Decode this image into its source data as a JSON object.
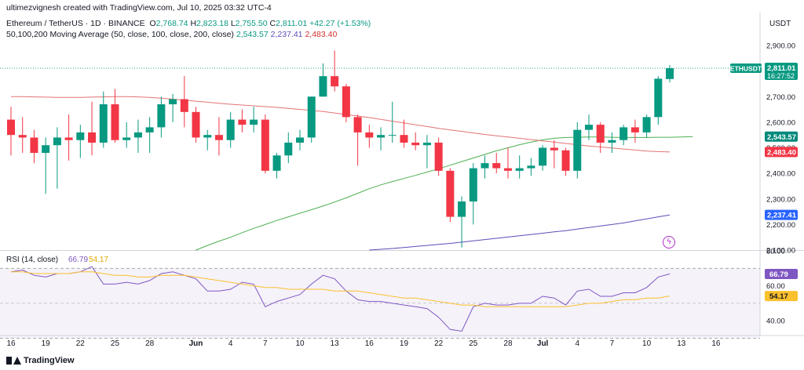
{
  "header": {
    "credit": "ultimezvignesh created with TradingView.com, Jul 10, 2025 03:32 UTC-4",
    "symbol": "Ethereum / TetherUS · 1D · BINANCE",
    "o_label": "O",
    "o_value": "2,768.74",
    "h_label": "H",
    "h_value": "2,823.18",
    "l_label": "L",
    "l_value": "2,755.50",
    "c_label": "C",
    "c_value": "2,811.01",
    "change": "+42.27 (+1.53%)",
    "ma_label": "50,100,200 Moving Average (50, close, 100, close, 200, close)",
    "ma50_value": "2,543.57",
    "ma100_value": "2,237.41",
    "ma200_value": "2,483.40"
  },
  "footer": {
    "brand": "TradingView"
  },
  "colors": {
    "up": "#089981",
    "down": "#f23645",
    "ma50": "#4caf50",
    "ma100": "#5b4fb8",
    "ma200": "#e57373",
    "rsi": "#7e57c2",
    "rsi_ma": "#fbc02d",
    "rsi_band": "#ede7f6"
  },
  "chart_data": [
    {
      "type": "candlestick",
      "title": "Ethereum / TetherUS · 1D · BINANCE",
      "currency": "USDT",
      "ylim": [
        2100,
        2950
      ],
      "y_ticks": [
        "2,900.00",
        "2,800.00",
        "2,700.00",
        "2,600.00",
        "2,500.00",
        "2,400.00",
        "2,300.00",
        "2,200.00",
        "2,100.00"
      ],
      "y_tick_values": [
        2900,
        2800,
        2700,
        2600,
        2500,
        2400,
        2300,
        2200,
        2100
      ],
      "x_ticks": [
        "16",
        "19",
        "22",
        "25",
        "28",
        "Jun",
        "4",
        "7",
        "10",
        "13",
        "16",
        "19",
        "22",
        "25",
        "28",
        "Jul",
        "4",
        "7",
        "10",
        "13",
        "16"
      ],
      "x_tick_index": [
        0,
        3,
        6,
        9,
        12,
        16,
        19,
        22,
        25,
        28,
        31,
        34,
        37,
        40,
        43,
        46,
        49,
        52,
        55,
        58,
        61
      ],
      "ohlc": [
        [
          2610,
          2660,
          2470,
          2550
        ],
        [
          2550,
          2620,
          2480,
          2540
        ],
        [
          2540,
          2570,
          2440,
          2480
        ],
        [
          2480,
          2540,
          2320,
          2510
        ],
        [
          2510,
          2580,
          2340,
          2540
        ],
        [
          2540,
          2630,
          2450,
          2530
        ],
        [
          2530,
          2590,
          2460,
          2560
        ],
        [
          2560,
          2680,
          2470,
          2520
        ],
        [
          2520,
          2720,
          2500,
          2670
        ],
        [
          2670,
          2730,
          2520,
          2530
        ],
        [
          2530,
          2600,
          2500,
          2540
        ],
        [
          2540,
          2610,
          2480,
          2560
        ],
        [
          2560,
          2620,
          2480,
          2580
        ],
        [
          2580,
          2700,
          2540,
          2670
        ],
        [
          2670,
          2710,
          2600,
          2690
        ],
        [
          2690,
          2780,
          2580,
          2640
        ],
        [
          2640,
          2660,
          2520,
          2540
        ],
        [
          2540,
          2570,
          2490,
          2550
        ],
        [
          2550,
          2620,
          2470,
          2530
        ],
        [
          2530,
          2640,
          2500,
          2610
        ],
        [
          2610,
          2650,
          2560,
          2590
        ],
        [
          2590,
          2660,
          2560,
          2610
        ],
        [
          2610,
          2630,
          2400,
          2410
        ],
        [
          2410,
          2480,
          2380,
          2470
        ],
        [
          2470,
          2560,
          2440,
          2520
        ],
        [
          2520,
          2570,
          2490,
          2540
        ],
        [
          2540,
          2700,
          2520,
          2700
        ],
        [
          2700,
          2830,
          2700,
          2780
        ],
        [
          2780,
          2880,
          2720,
          2740
        ],
        [
          2740,
          2750,
          2600,
          2620
        ],
        [
          2620,
          2630,
          2430,
          2560
        ],
        [
          2560,
          2590,
          2500,
          2540
        ],
        [
          2540,
          2580,
          2490,
          2550
        ],
        [
          2550,
          2680,
          2520,
          2550
        ],
        [
          2550,
          2610,
          2500,
          2520
        ],
        [
          2520,
          2560,
          2490,
          2510
        ],
        [
          2510,
          2550,
          2420,
          2520
        ],
        [
          2520,
          2540,
          2390,
          2410
        ],
        [
          2410,
          2420,
          2210,
          2230
        ],
        [
          2230,
          2310,
          2110,
          2290
        ],
        [
          2290,
          2440,
          2200,
          2420
        ],
        [
          2420,
          2470,
          2380,
          2440
        ],
        [
          2440,
          2480,
          2400,
          2420
        ],
        [
          2420,
          2500,
          2380,
          2410
        ],
        [
          2410,
          2470,
          2380,
          2420
        ],
        [
          2420,
          2460,
          2390,
          2430
        ],
        [
          2430,
          2510,
          2410,
          2500
        ],
        [
          2500,
          2530,
          2420,
          2490
        ],
        [
          2490,
          2500,
          2390,
          2410
        ],
        [
          2410,
          2600,
          2380,
          2570
        ],
        [
          2570,
          2630,
          2530,
          2590
        ],
        [
          2590,
          2600,
          2480,
          2520
        ],
        [
          2520,
          2560,
          2480,
          2530
        ],
        [
          2530,
          2590,
          2510,
          2580
        ],
        [
          2580,
          2610,
          2520,
          2560
        ],
        [
          2560,
          2630,
          2540,
          2620
        ],
        [
          2620,
          2780,
          2590,
          2770
        ],
        [
          2768.74,
          2823.18,
          2755.5,
          2811.01
        ]
      ],
      "ma_series": [
        {
          "name": "MA 50",
          "start": 16,
          "values": [
            2100,
            2118,
            2135,
            2150,
            2168,
            2185,
            2200,
            2216,
            2230,
            2244,
            2258,
            2272,
            2288,
            2304,
            2322,
            2340,
            2355,
            2368,
            2380,
            2392,
            2405,
            2418,
            2432,
            2446,
            2460,
            2474,
            2488,
            2500,
            2512,
            2522,
            2531,
            2537,
            2540,
            2541,
            2542,
            2542,
            2541,
            2540,
            2540,
            2540,
            2541,
            2541,
            2542,
            2543.57
          ]
        },
        {
          "name": "MA 100",
          "start": 31,
          "values": [
            2100,
            2103,
            2106,
            2110,
            2114,
            2118,
            2122,
            2126,
            2131,
            2136,
            2141,
            2146,
            2151,
            2156,
            2161,
            2166,
            2171,
            2176,
            2182,
            2188,
            2194,
            2200,
            2206,
            2214,
            2222,
            2230,
            2237.41
          ]
        },
        {
          "name": "MA 200",
          "start": 0,
          "values": [
            2700,
            2700,
            2699,
            2698,
            2697,
            2697,
            2697,
            2698,
            2699,
            2700,
            2700,
            2699,
            2697,
            2694,
            2690,
            2686,
            2682,
            2678,
            2674,
            2670,
            2667,
            2664,
            2661,
            2658,
            2654,
            2650,
            2646,
            2642,
            2636,
            2630,
            2624,
            2618,
            2611,
            2604,
            2597,
            2590,
            2583,
            2576,
            2570,
            2564,
            2558,
            2552,
            2547,
            2542,
            2537,
            2532,
            2527,
            2522,
            2517,
            2512,
            2507,
            2503,
            2499,
            2495,
            2491,
            2487,
            2485,
            2483.4
          ]
        }
      ],
      "price_labels": [
        {
          "symbol": "ETHUSDT",
          "value": "2,811.01",
          "sub": "16:27:52",
          "y": 2811.01
        },
        {
          "value": "2,543.57",
          "y": 2543.57
        },
        {
          "value": "2,483.40",
          "y": 2483.4
        },
        {
          "value": "2,237.41",
          "y": 2237.41
        }
      ]
    },
    {
      "type": "line",
      "title": "RSI (14, close)",
      "rsi_value": "66.79",
      "rsi_ma_value": "54.17",
      "ylim": [
        32,
        80
      ],
      "y_ticks": [
        "80.00",
        "60.00",
        "40.00"
      ],
      "y_tick_values": [
        80,
        60,
        40
      ],
      "band": [
        30,
        70
      ],
      "series": [
        {
          "name": "RSI",
          "values": [
            68,
            69,
            66,
            65,
            67,
            67,
            68,
            71,
            61,
            61,
            62,
            61,
            63,
            67,
            68,
            66,
            64,
            57,
            57,
            58,
            62,
            61,
            48,
            51,
            53,
            55,
            61,
            66,
            64,
            57,
            52,
            51,
            51,
            50,
            49,
            48,
            47,
            42,
            35,
            34,
            48,
            50,
            49,
            49,
            50,
            50,
            54,
            53,
            49,
            57,
            58,
            54,
            54,
            56,
            56,
            59,
            65,
            66.79
          ]
        },
        {
          "name": "RSI MA",
          "values": [
            68,
            68,
            67,
            67,
            67,
            67,
            68,
            68,
            67,
            66,
            66,
            65,
            65,
            66,
            66,
            66,
            65,
            64,
            63,
            62,
            61,
            60,
            59,
            59,
            58,
            58,
            58,
            58,
            57,
            57,
            57,
            56,
            55,
            54,
            53,
            53,
            52,
            51,
            50,
            49,
            49,
            48,
            48,
            48,
            48,
            48,
            48,
            48,
            48,
            49,
            50,
            50,
            51,
            52,
            52,
            53,
            53,
            54.17
          ]
        }
      ]
    }
  ]
}
